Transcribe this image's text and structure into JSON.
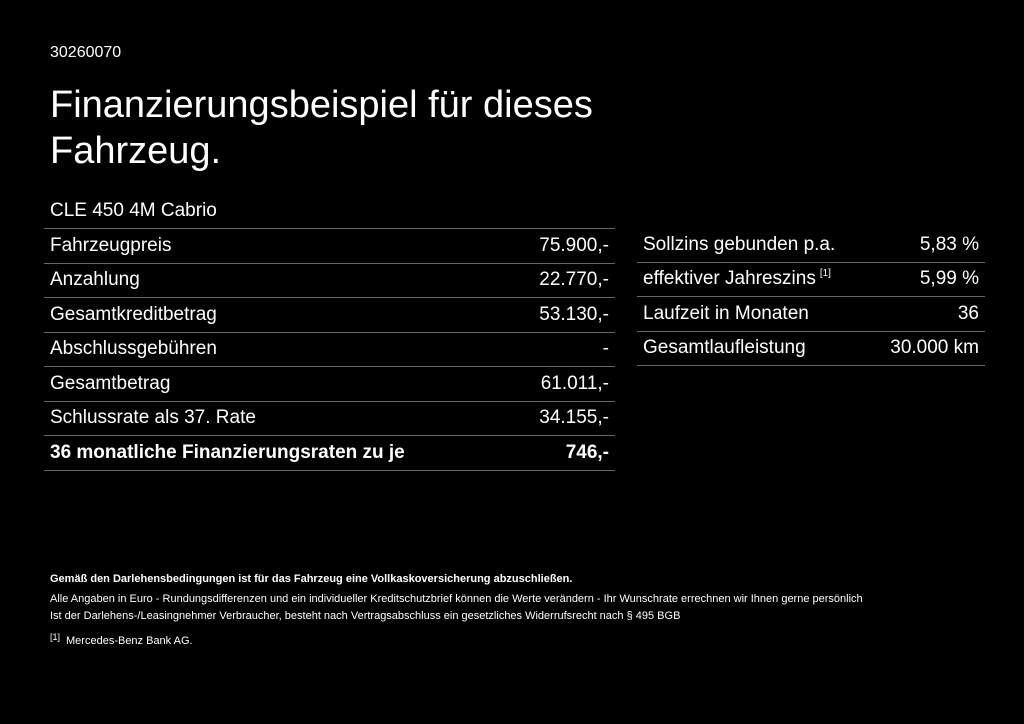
{
  "header": {
    "id": "30260070",
    "title": "Finanzierungsbeispiel für dieses Fahrzeug."
  },
  "model": "CLE 450 4M Cabrio",
  "left_table": {
    "rows": [
      {
        "label": "Fahrzeugpreis",
        "value": "75.900,-"
      },
      {
        "label": "Anzahlung",
        "value": "22.770,-"
      },
      {
        "label": "Gesamtkreditbetrag",
        "value": "53.130,-"
      },
      {
        "label": "Abschlussgebühren",
        "value": "-"
      },
      {
        "label": "Gesamtbetrag",
        "value": "61.011,-"
      },
      {
        "label": "Schlussrate als 37. Rate",
        "value": "34.155,-"
      },
      {
        "label": "36 monatliche Finanzierungsraten zu je",
        "value": "746,-"
      }
    ]
  },
  "right_table": {
    "rows": [
      {
        "label": "Sollzins gebunden p.a.",
        "value": "5,83 %"
      },
      {
        "label": "effektiver Jahreszins",
        "note": "[1]",
        "value": "5,99 %"
      },
      {
        "label": "Laufzeit in Monaten",
        "value": "36"
      },
      {
        "label": "Gesamtlaufleistung",
        "value": "30.000 km"
      }
    ]
  },
  "notes": [
    "Gemäß den Darlehensbedingungen ist für das Fahrzeug eine Vollkaskoversicherung abzuschließen.",
    "Alle Angaben in Euro - Rundungsdifferenzen und ein individueller Kreditschutzbrief können die Werte verändern - Ihr Wunschrate errechnen wir Ihnen gerne persönlich",
    "Ist der Darlehens-/Leasingnehmer Verbraucher, besteht nach Vertragsabschluss ein gesetzliches Widerrufsrecht nach § 495 BGB"
  ],
  "footnote": {
    "marker": "[1]",
    "text": "Mercedes-Benz Bank AG."
  }
}
